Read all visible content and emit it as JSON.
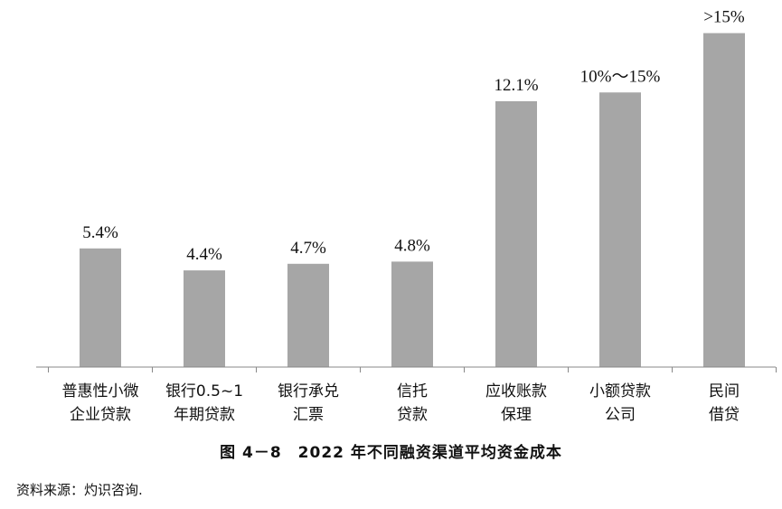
{
  "figure": {
    "caption": "图 4－8　2022 年不同融资渠道平均资金成本",
    "source": "资料来源：灼识咨询."
  },
  "chart_data": {
    "type": "bar",
    "categories": [
      [
        "普惠性小微",
        "企业贷款"
      ],
      [
        "银行0.5~1",
        "年期贷款"
      ],
      [
        "银行承兑",
        "汇票"
      ],
      [
        "信托",
        "贷款"
      ],
      [
        "应收账款",
        "保理"
      ],
      [
        "小额贷款",
        "公司"
      ],
      [
        "民间",
        "借贷"
      ]
    ],
    "values": [
      5.4,
      4.4,
      4.7,
      4.8,
      12.1,
      12.5,
      15.2
    ],
    "data_labels": [
      "5.4%",
      "4.4%",
      "4.7%",
      "4.8%",
      "12.1%",
      "10%～15%",
      ">15%"
    ],
    "ylim": [
      0,
      16
    ],
    "bar_color": "#a6a6a6",
    "axis_color": "#888888",
    "grid": false
  }
}
